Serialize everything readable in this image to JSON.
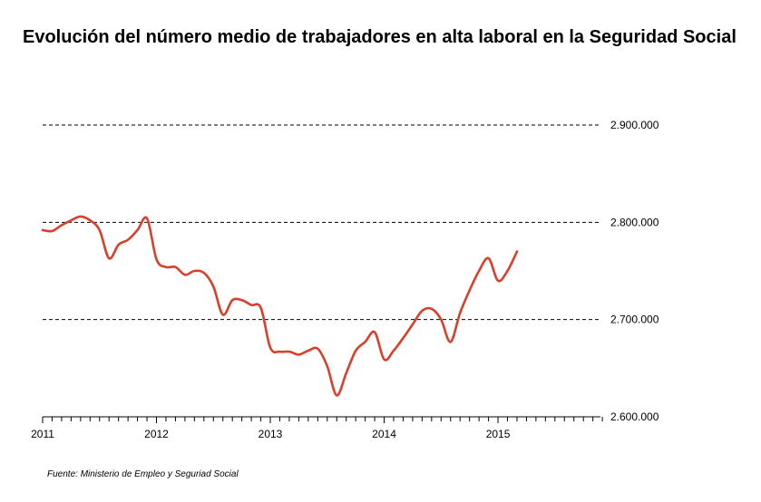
{
  "chart_data": {
    "type": "line",
    "title": "Evolución del número medio de trabajadores en alta laboral en la Seguridad Social",
    "xlabel": "",
    "ylabel": "",
    "ylim": [
      2600000,
      2900000
    ],
    "xlim": [
      2011.0,
      2015.9
    ],
    "yticks": [
      2600000,
      2700000,
      2800000,
      2900000
    ],
    "ytick_labels": [
      "2.600.000",
      "2.700.000",
      "2.800.000",
      "2.900.000"
    ],
    "xticks": [
      2011,
      2012,
      2013,
      2014,
      2015
    ],
    "xtick_labels": [
      "2011",
      "2012",
      "2013",
      "2014",
      "2015"
    ],
    "grid": "horizontal dashed",
    "y_axis_side": "right",
    "series": [
      {
        "color": "#d9402b",
        "x": [
          2011.0,
          2011.083,
          2011.167,
          2011.25,
          2011.333,
          2011.417,
          2011.5,
          2011.583,
          2011.667,
          2011.75,
          2011.833,
          2011.917,
          2012.0,
          2012.083,
          2012.167,
          2012.25,
          2012.333,
          2012.417,
          2012.5,
          2012.583,
          2012.667,
          2012.75,
          2012.833,
          2012.917,
          2013.0,
          2013.083,
          2013.167,
          2013.25,
          2013.333,
          2013.417,
          2013.5,
          2013.583,
          2013.667,
          2013.75,
          2013.833,
          2013.917,
          2014.0,
          2014.083,
          2014.167,
          2014.25,
          2014.333,
          2014.417,
          2014.5,
          2014.583,
          2014.667,
          2014.75,
          2014.833,
          2014.917,
          2015.0,
          2015.083,
          2015.167
        ],
        "y": [
          2792000,
          2791000,
          2797000,
          2802000,
          2806000,
          2802000,
          2792000,
          2763000,
          2777000,
          2782000,
          2792000,
          2804000,
          2762000,
          2754000,
          2754000,
          2746000,
          2750000,
          2748000,
          2734000,
          2705000,
          2720000,
          2720000,
          2715000,
          2712000,
          2671000,
          2667000,
          2667000,
          2664000,
          2668000,
          2670000,
          2652000,
          2622000,
          2645000,
          2668000,
          2677000,
          2687000,
          2659000,
          2668000,
          2681000,
          2695000,
          2709000,
          2711000,
          2700000,
          2677000,
          2707000,
          2730000,
          2750000,
          2763000,
          2740000,
          2750000,
          2770000
        ]
      }
    ]
  },
  "source": "Fuente: Ministerio de Empleo y Seguriad Social"
}
